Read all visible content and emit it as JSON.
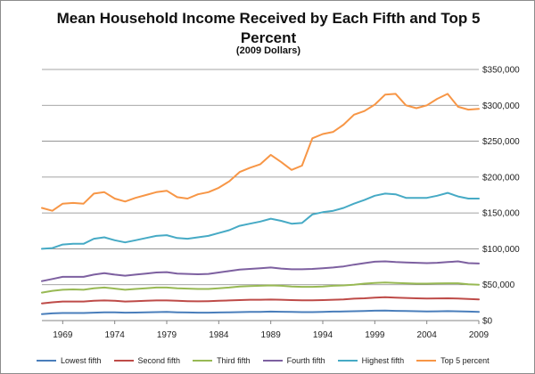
{
  "chart_data": {
    "type": "line",
    "title": "Mean Household Income Received by Each Fifth and Top 5 Percent",
    "subtitle": "(2009 Dollars)",
    "xlabel": "",
    "ylabel": "",
    "ylim": [
      0,
      350000
    ],
    "yticks": [
      0,
      50000,
      100000,
      150000,
      200000,
      250000,
      300000,
      350000
    ],
    "ytick_labels": [
      "$0",
      "$50,000",
      "$100,000",
      "$150,000",
      "$200,000",
      "$250,000",
      "$300,000",
      "$350,000"
    ],
    "y_axis_side": "right",
    "xlim": [
      1967,
      2009
    ],
    "xticks": [
      1969,
      1974,
      1979,
      1984,
      1989,
      1994,
      1999,
      2004,
      2009
    ],
    "xtick_labels": [
      "1969",
      "1974",
      "1979",
      "1984",
      "1989",
      "1994",
      "1999",
      "2004",
      "2009"
    ],
    "grid": "horizontal",
    "legend_position": "bottom",
    "x": [
      1967,
      1968,
      1969,
      1970,
      1971,
      1972,
      1973,
      1974,
      1975,
      1976,
      1977,
      1978,
      1979,
      1980,
      1981,
      1982,
      1983,
      1984,
      1985,
      1986,
      1987,
      1988,
      1989,
      1990,
      1991,
      1992,
      1993,
      1994,
      1995,
      1996,
      1997,
      1998,
      1999,
      2000,
      2001,
      2002,
      2003,
      2004,
      2005,
      2006,
      2007,
      2008,
      2009
    ],
    "series": [
      {
        "name": "Lowest fifth",
        "color": "#4a7ebb",
        "values": [
          9000,
          10000,
          10500,
          10500,
          10500,
          11000,
          11500,
          11500,
          11000,
          11200,
          11500,
          11800,
          12000,
          11500,
          11300,
          11000,
          11000,
          11300,
          11500,
          11800,
          12000,
          12200,
          12500,
          12300,
          12000,
          11800,
          11800,
          12200,
          12500,
          12600,
          13000,
          13400,
          13800,
          14000,
          13500,
          13300,
          13000,
          12800,
          12900,
          13100,
          12900,
          12500,
          12200
        ]
      },
      {
        "name": "Second fifth",
        "color": "#be4b48",
        "values": [
          24000,
          25500,
          26500,
          26500,
          26500,
          27500,
          28000,
          27500,
          26500,
          27000,
          27500,
          28000,
          28000,
          27500,
          27000,
          26800,
          27000,
          27500,
          28000,
          28500,
          29000,
          29000,
          29300,
          29000,
          28500,
          28200,
          28200,
          28500,
          29000,
          29500,
          30500,
          31000,
          32000,
          32500,
          32000,
          31500,
          31000,
          30800,
          30900,
          31000,
          30800,
          30000,
          29500
        ]
      },
      {
        "name": "Third fifth",
        "color": "#98b954",
        "values": [
          39000,
          41500,
          43000,
          43500,
          43000,
          45000,
          46000,
          44500,
          43000,
          44000,
          45000,
          46000,
          46000,
          45000,
          44500,
          44000,
          44000,
          45000,
          46000,
          47500,
          48000,
          48500,
          49000,
          48500,
          47500,
          47000,
          47000,
          47500,
          48500,
          49000,
          50000,
          51500,
          52500,
          53000,
          52500,
          52000,
          51500,
          51500,
          51800,
          52000,
          52000,
          50500,
          50000
        ]
      },
      {
        "name": "Fourth fifth",
        "color": "#7d60a0",
        "values": [
          55000,
          58000,
          61000,
          61000,
          61000,
          64000,
          66000,
          64000,
          62500,
          64000,
          65500,
          67000,
          67500,
          65500,
          65000,
          64500,
          65000,
          67000,
          69000,
          71000,
          72000,
          73000,
          74000,
          72500,
          71500,
          71500,
          72000,
          73000,
          74000,
          75500,
          78000,
          80000,
          82000,
          82500,
          81500,
          81000,
          80500,
          80000,
          80500,
          81500,
          82500,
          80000,
          79500
        ]
      },
      {
        "name": "Highest fifth",
        "color": "#46aac5",
        "values": [
          100000,
          101000,
          106000,
          107000,
          107000,
          114000,
          116000,
          112000,
          109000,
          112000,
          115000,
          118000,
          119000,
          115000,
          114000,
          116000,
          118000,
          122000,
          126000,
          132000,
          135000,
          138000,
          142000,
          139000,
          135000,
          136000,
          148000,
          151000,
          153000,
          157000,
          163000,
          168000,
          174000,
          177000,
          176000,
          171000,
          171000,
          171000,
          174000,
          178000,
          173000,
          170000,
          170000
        ]
      },
      {
        "name": "Top 5 percent",
        "color": "#f79646",
        "values": [
          157000,
          153000,
          163000,
          164000,
          163000,
          177000,
          179000,
          170000,
          166000,
          171000,
          175000,
          179000,
          181000,
          172000,
          170000,
          176000,
          179000,
          185000,
          194000,
          207000,
          213000,
          218000,
          231000,
          221000,
          210000,
          216000,
          254000,
          260000,
          263000,
          273000,
          287000,
          292000,
          301000,
          315000,
          316000,
          300000,
          296000,
          300000,
          309000,
          316000,
          298000,
          294000,
          295000
        ]
      }
    ]
  }
}
